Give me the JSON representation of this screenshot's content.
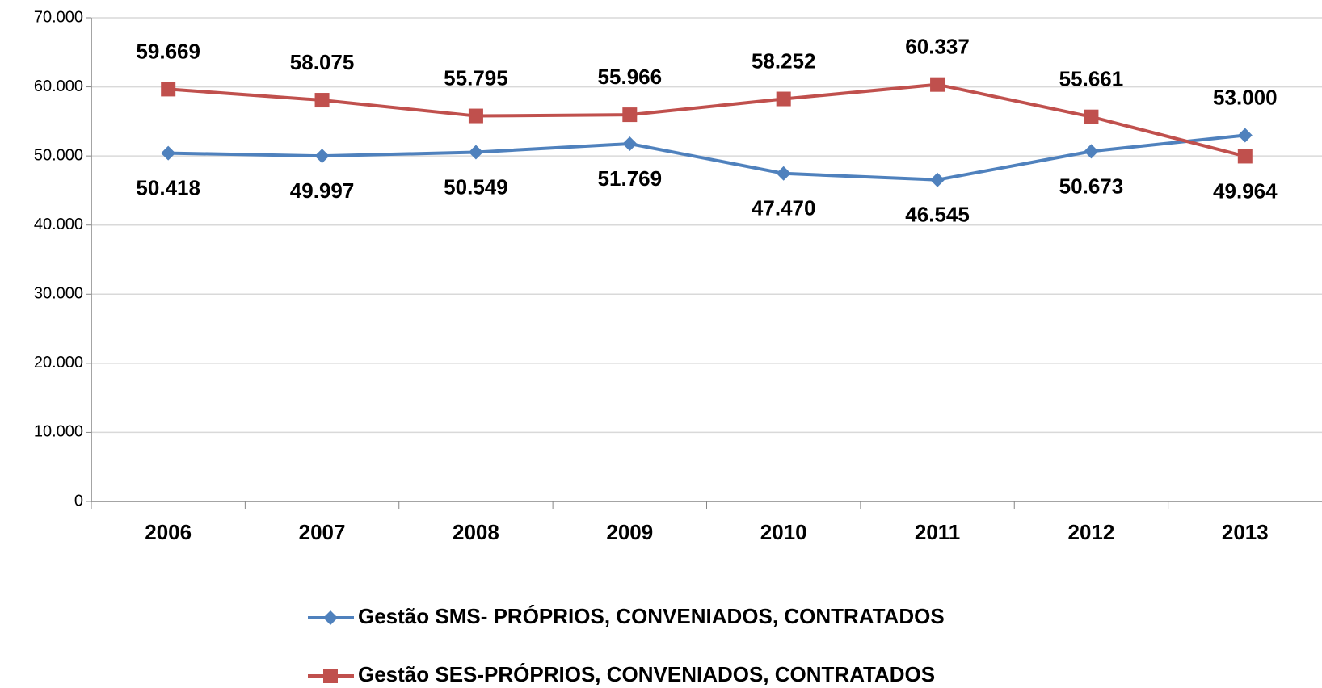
{
  "chart_data": {
    "type": "line",
    "categories": [
      "2006",
      "2007",
      "2008",
      "2009",
      "2010",
      "2011",
      "2012",
      "2013"
    ],
    "series": [
      {
        "name": "Gestão SMS- PRÓPRIOS, CONVENIADOS, CONTRATADOS",
        "color": "#4f81bd",
        "marker": "diamond",
        "values": [
          50418,
          49997,
          50549,
          51769,
          47470,
          46545,
          50673,
          53000
        ],
        "value_labels": [
          "50.418",
          "49.997",
          "50.549",
          "51.769",
          "47.470",
          "46.545",
          "50.673",
          "53.000"
        ]
      },
      {
        "name": "Gestão SES-PRÓPRIOS, CONVENIADOS, CONTRATADOS",
        "color": "#c0504d",
        "marker": "square",
        "values": [
          59669,
          58075,
          55795,
          55966,
          58252,
          60337,
          55661,
          49964
        ],
        "value_labels": [
          "59.669",
          "58.075",
          "55.795",
          "55.966",
          "58.252",
          "60.337",
          "55.661",
          "49.964"
        ]
      }
    ],
    "ylim": [
      0,
      70000
    ],
    "yticks": [
      0,
      {
        "value": 10000,
        "label": "10.000"
      },
      {
        "value": 20000,
        "label": "20.000"
      },
      {
        "value": 30000,
        "label": "30.000"
      },
      {
        "value": 40000,
        "label": "40.000"
      },
      {
        "value": 50000,
        "label": "50.000"
      },
      {
        "value": 60000,
        "label": "60.000"
      },
      {
        "value": 70000,
        "label": "70.000"
      }
    ],
    "grid": true,
    "legend": "bottom"
  }
}
